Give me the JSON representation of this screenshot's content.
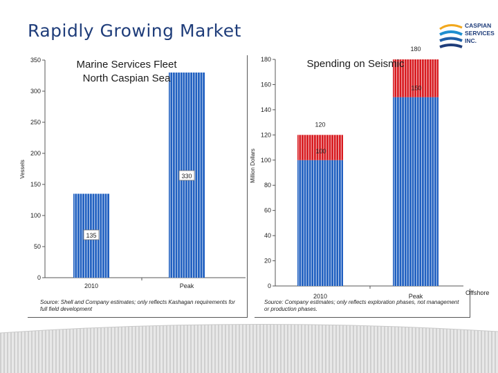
{
  "slide": {
    "title": "Rapidly Growing Market",
    "logo_lines": [
      "CASPIAN",
      "SERVICES",
      "INC."
    ],
    "offshore_label": "Offshore"
  },
  "colors": {
    "blue": "#1f5fc0",
    "red": "#d8191e",
    "title": "#1f3d7a"
  },
  "chart_data": [
    {
      "type": "bar",
      "title": "Marine Services Fleet North Caspian Sea",
      "title_lines": [
        "Marine Services Fleet",
        "North Caspian Sea"
      ],
      "ylabel": "Vessels",
      "categories": [
        "2010",
        "Peak"
      ],
      "values": [
        135,
        330
      ],
      "data_labels": [
        "135",
        "330"
      ],
      "ylim": [
        0,
        350
      ],
      "yticks": [
        0,
        50,
        100,
        150,
        200,
        250,
        300,
        350
      ],
      "ytick_labels": [
        "0",
        "50",
        "100",
        "150",
        "200",
        "250",
        "300",
        "350"
      ],
      "source": "Source: Shell and Company estimates; only reflects Kashagan requirements for full field development"
    },
    {
      "type": "bar",
      "stacked": true,
      "title": "Spending on Seismic",
      "ylabel": "Million Dollars",
      "categories": [
        "2010",
        "Peak"
      ],
      "series": [
        {
          "name": "Offshore",
          "color": "blue",
          "values": [
            100,
            150
          ]
        },
        {
          "name": "",
          "color": "red",
          "values": [
            20,
            30
          ]
        }
      ],
      "totals": [
        120,
        180
      ],
      "data_labels_total": [
        "120",
        "180"
      ],
      "data_labels_inner": [
        "100",
        "150"
      ],
      "ylim": [
        0,
        180
      ],
      "yticks": [
        0,
        20,
        40,
        60,
        80,
        100,
        120,
        140,
        160,
        180
      ],
      "ytick_labels": [
        "0",
        "20",
        "40",
        "60",
        "80",
        "100",
        "120",
        "140",
        "160",
        "180"
      ],
      "source": "Source: Company estimates; only reflects exploration phases, not management or production phases."
    }
  ]
}
